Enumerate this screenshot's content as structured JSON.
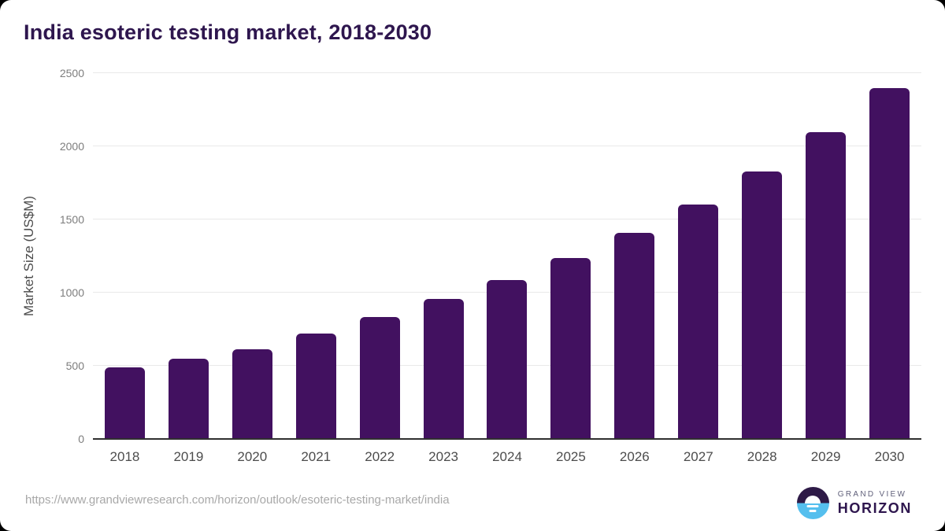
{
  "page": {
    "source_url": "https://www.grandviewresearch.com/horizon/outlook/esoteric-testing-market/india"
  },
  "logo": {
    "brand_top": "GRAND VIEW",
    "brand_bottom": "HORIZON"
  },
  "chart_data": {
    "type": "bar",
    "title": "India esoteric testing market, 2018-2030",
    "categories": [
      "2018",
      "2019",
      "2020",
      "2021",
      "2022",
      "2023",
      "2024",
      "2025",
      "2026",
      "2027",
      "2028",
      "2029",
      "2030"
    ],
    "values": [
      490,
      550,
      615,
      720,
      835,
      955,
      1085,
      1235,
      1410,
      1600,
      1830,
      2095,
      2400
    ],
    "xlabel": "",
    "ylabel": "Market Size (US$M)",
    "ylim": [
      0,
      2500
    ],
    "yticks": [
      0,
      500,
      1000,
      1500,
      2000,
      2500
    ],
    "grid": true,
    "legend_position": "none",
    "bar_color": "#421160"
  },
  "colors": {
    "title_text": "#2e164e",
    "bar_fill": "#421160",
    "axis_line": "#303030",
    "gridline": "#e9e9e9",
    "y_tick_label": "#7d7d7d",
    "x_tick_label": "#4c4c4c",
    "url_text": "#a8a8a8",
    "logo_purple": "#2e1a47",
    "logo_blue": "#55bfee"
  }
}
